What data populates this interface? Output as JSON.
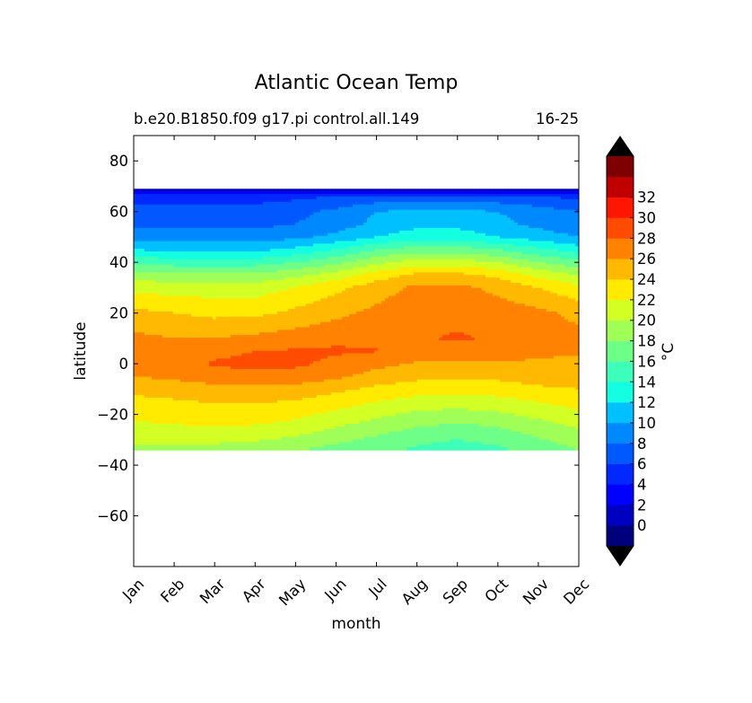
{
  "chart_data": {
    "type": "contour",
    "title": "Atlantic Ocean Temp",
    "subtitle_left": "b.e20.B1850.f09 g17.pi control.all.149",
    "subtitle_right": "16-25",
    "xlabel": "month",
    "ylabel": "latitude",
    "x_categories": [
      "Jan",
      "Feb",
      "Mar",
      "Apr",
      "May",
      "Jun",
      "Jul",
      "Aug",
      "Sep",
      "Oct",
      "Nov",
      "Dec"
    ],
    "ylim": [
      -80,
      90
    ],
    "yticks": [
      80,
      60,
      40,
      20,
      0,
      -20,
      -40,
      -60
    ],
    "ytick_labels": [
      "80",
      "60",
      "40",
      "20",
      "0",
      "−20",
      "−40",
      "−60"
    ],
    "data_lat_range": [
      -34,
      69
    ],
    "colorbar": {
      "label": "°C",
      "extend": "both",
      "level_min": -2,
      "level_max": 34,
      "level_step": 2,
      "tick_labels": [
        "0",
        "2",
        "4",
        "6",
        "8",
        "10",
        "12",
        "14",
        "16",
        "18",
        "20",
        "22",
        "24",
        "26",
        "28",
        "30",
        "32"
      ],
      "under_color": "#000000",
      "over_color": "#000000",
      "colors": [
        "#00007f",
        "#0000c0",
        "#0000ff",
        "#0028ff",
        "#0058ff",
        "#0088ff",
        "#00c0ff",
        "#14ffe2",
        "#3cffba",
        "#6eff89",
        "#a0ff56",
        "#d2ff24",
        "#ffea00",
        "#ffb900",
        "#ff8300",
        "#ff4c00",
        "#ff1600",
        "#c00000",
        "#7f0000"
      ]
    },
    "contour_rows": [
      {
        "lat": 69,
        "values": [
          -1,
          -1,
          -1,
          -1,
          -1,
          -1,
          -1,
          -1,
          -1,
          -1,
          -1,
          -1
        ]
      },
      {
        "lat": 66,
        "values": [
          5,
          5,
          5,
          5,
          5.5,
          6,
          6.5,
          7,
          7,
          6.5,
          6,
          5.5
        ]
      },
      {
        "lat": 60,
        "values": [
          7,
          7,
          7,
          7,
          7.5,
          8.5,
          10,
          10.5,
          10.5,
          10,
          9,
          8
        ]
      },
      {
        "lat": 55,
        "values": [
          7.5,
          7.5,
          7.5,
          7.5,
          8,
          9,
          10.5,
          11.5,
          11.5,
          10.5,
          9.5,
          8.5
        ]
      },
      {
        "lat": 50,
        "values": [
          9,
          9,
          9,
          9,
          9.5,
          10.5,
          12,
          13,
          13,
          12,
          11,
          10
        ]
      },
      {
        "lat": 45,
        "values": [
          12,
          11.5,
          11.5,
          11.5,
          12.5,
          14,
          16,
          17,
          17,
          16,
          14.5,
          13
        ]
      },
      {
        "lat": 40,
        "values": [
          15.5,
          15,
          15,
          15,
          16,
          17.5,
          19.5,
          21,
          21,
          20,
          18,
          16.5
        ]
      },
      {
        "lat": 35,
        "values": [
          19,
          18.5,
          18.5,
          18.5,
          19.5,
          21,
          23,
          24.5,
          24.5,
          23.5,
          21.5,
          20
        ]
      },
      {
        "lat": 30,
        "values": [
          21.5,
          21,
          21,
          21,
          22,
          23.5,
          25,
          26.5,
          26.5,
          25.5,
          24,
          22.5
        ]
      },
      {
        "lat": 20,
        "values": [
          24.5,
          24,
          23.5,
          23.5,
          24.5,
          25.5,
          26.5,
          27.5,
          27.5,
          27,
          26.5,
          25.5
        ]
      },
      {
        "lat": 10,
        "values": [
          26.5,
          26,
          26,
          26.5,
          27,
          27.5,
          27.5,
          27.8,
          28.2,
          27.8,
          27,
          26.5
        ]
      },
      {
        "lat": 5,
        "values": [
          27,
          27,
          27.5,
          28,
          28.2,
          28.3,
          28.1,
          27.5,
          27.2,
          27,
          26.8,
          26.5
        ]
      },
      {
        "lat": 0,
        "values": [
          26.8,
          27.2,
          28.2,
          28.5,
          28.4,
          27.5,
          26.5,
          25.8,
          25.5,
          25.8,
          25.5,
          25
        ]
      },
      {
        "lat": -5,
        "values": [
          26,
          26.5,
          27.2,
          27.5,
          27.2,
          26.4,
          25.3,
          24.5,
          24.2,
          24.5,
          25,
          25.2
        ]
      },
      {
        "lat": -10,
        "values": [
          24.5,
          24.8,
          25.2,
          25.5,
          25.2,
          24.5,
          23.5,
          23,
          22.8,
          23,
          23.6,
          24
        ]
      },
      {
        "lat": -15,
        "values": [
          23.5,
          23.8,
          24.1,
          24.2,
          23.8,
          23,
          22,
          21.2,
          21,
          21.3,
          22,
          22.8
        ]
      },
      {
        "lat": -20,
        "values": [
          22.5,
          22.8,
          23,
          23,
          22.5,
          21.5,
          20.5,
          19.5,
          19.2,
          19.6,
          20.6,
          21.6
        ]
      },
      {
        "lat": -25,
        "values": [
          21.5,
          21.8,
          22,
          21.8,
          21.2,
          20,
          19,
          18,
          17.5,
          18,
          19,
          20.2
        ]
      },
      {
        "lat": -30,
        "values": [
          20.5,
          20.5,
          20.5,
          20.2,
          19.6,
          18.5,
          17.5,
          16.6,
          16,
          16.6,
          17.8,
          19
        ]
      },
      {
        "lat": -34,
        "values": [
          19.5,
          19.5,
          19.2,
          18.8,
          18.2,
          17.2,
          16.5,
          15.6,
          15,
          15.6,
          16.6,
          18
        ]
      }
    ]
  }
}
